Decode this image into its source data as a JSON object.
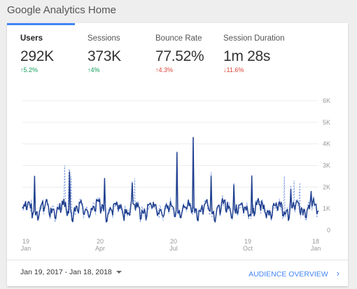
{
  "page": {
    "title": "Google Analytics Home"
  },
  "metrics": [
    {
      "label": "Users",
      "value": "292K",
      "change": "5.2%",
      "direction": "up",
      "color": "#0f9d58"
    },
    {
      "label": "Sessions",
      "value": "373K",
      "change": "4%",
      "direction": "up",
      "color": "#0f9d58"
    },
    {
      "label": "Bounce Rate",
      "value": "77.52%",
      "change": "4.3%",
      "direction": "up",
      "color": "#db4437"
    },
    {
      "label": "Session Duration",
      "value": "1m 28s",
      "change": "11.6%",
      "direction": "down",
      "color": "#db4437"
    }
  ],
  "chart_data": {
    "type": "line",
    "y_ticks": [
      "0",
      "1K",
      "2K",
      "3K",
      "4K",
      "5K",
      "6K"
    ],
    "ylim": [
      0,
      6000
    ],
    "x_ticks": [
      {
        "day": "19",
        "month": "Jan"
      },
      {
        "day": "20",
        "month": "Apr"
      },
      {
        "day": "20",
        "month": "Jul"
      },
      {
        "day": "19",
        "month": "Oct"
      },
      {
        "day": "18",
        "month": "Jan"
      }
    ],
    "grid": true,
    "series": [
      {
        "style": "solid",
        "color": "#1f3f8f"
      },
      {
        "style": "dashed",
        "color": "#7b9be0"
      }
    ]
  },
  "footer": {
    "date_range": "Jan 19, 2017 - Jan 18, 2018",
    "link_label": "AUDIENCE OVERVIEW"
  },
  "icons": {
    "caret": "caret-down-icon",
    "chevron": "chevron-right-icon"
  }
}
